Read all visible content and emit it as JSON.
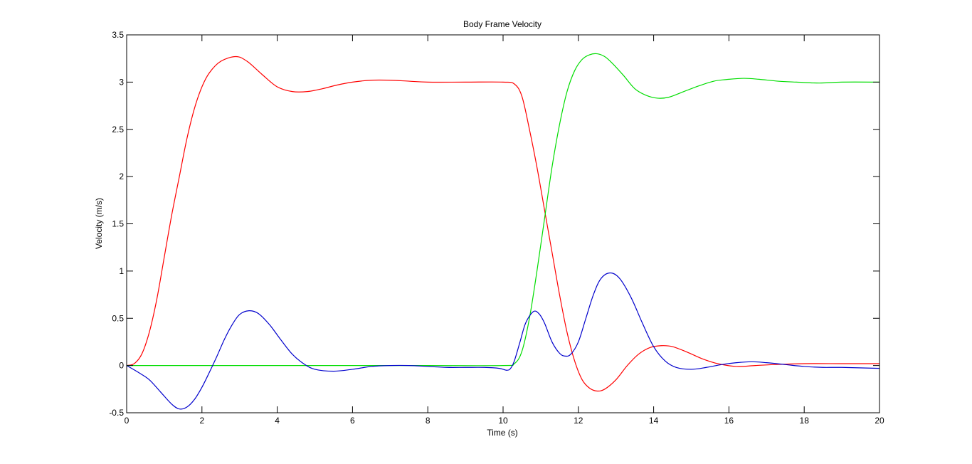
{
  "chart_data": {
    "type": "line",
    "title": "Body Frame Velocity",
    "xlabel": "Time (s)",
    "ylabel": "Velocity (m/s)",
    "xlim": [
      0,
      20
    ],
    "ylim": [
      -0.5,
      3.5
    ],
    "xticks": [
      0,
      2,
      4,
      6,
      8,
      10,
      12,
      14,
      16,
      18,
      20
    ],
    "yticks": [
      -0.5,
      0,
      0.5,
      1,
      1.5,
      2,
      2.5,
      3,
      3.5
    ],
    "xtick_labels": [
      "0",
      "2",
      "4",
      "6",
      "8",
      "10",
      "12",
      "14",
      "16",
      "18",
      "20"
    ],
    "ytick_labels": [
      "-0.5",
      "0",
      "0.5",
      "1",
      "1.5",
      "2",
      "2.5",
      "3",
      "3.5"
    ],
    "grid": false,
    "series": [
      {
        "color": "#ff0000",
        "points": [
          [
            0,
            0
          ],
          [
            0.2,
            0.02
          ],
          [
            0.4,
            0.12
          ],
          [
            0.6,
            0.35
          ],
          [
            0.8,
            0.7
          ],
          [
            1.0,
            1.15
          ],
          [
            1.2,
            1.6
          ],
          [
            1.4,
            2.0
          ],
          [
            1.6,
            2.4
          ],
          [
            1.8,
            2.72
          ],
          [
            2.0,
            2.95
          ],
          [
            2.2,
            3.1
          ],
          [
            2.5,
            3.22
          ],
          [
            2.9,
            3.27
          ],
          [
            3.2,
            3.22
          ],
          [
            3.6,
            3.08
          ],
          [
            4.0,
            2.95
          ],
          [
            4.4,
            2.9
          ],
          [
            4.8,
            2.9
          ],
          [
            5.2,
            2.93
          ],
          [
            5.6,
            2.97
          ],
          [
            6.0,
            3.0
          ],
          [
            6.5,
            3.02
          ],
          [
            7.0,
            3.02
          ],
          [
            7.5,
            3.01
          ],
          [
            8.0,
            3.0
          ],
          [
            9.0,
            3.0
          ],
          [
            10.0,
            3.0
          ],
          [
            10.3,
            2.98
          ],
          [
            10.5,
            2.85
          ],
          [
            10.7,
            2.5
          ],
          [
            10.9,
            2.1
          ],
          [
            11.1,
            1.65
          ],
          [
            11.3,
            1.2
          ],
          [
            11.5,
            0.75
          ],
          [
            11.7,
            0.35
          ],
          [
            11.9,
            0.05
          ],
          [
            12.1,
            -0.15
          ],
          [
            12.3,
            -0.24
          ],
          [
            12.5,
            -0.27
          ],
          [
            12.7,
            -0.25
          ],
          [
            13.0,
            -0.15
          ],
          [
            13.3,
            0.0
          ],
          [
            13.6,
            0.12
          ],
          [
            13.9,
            0.19
          ],
          [
            14.2,
            0.21
          ],
          [
            14.5,
            0.2
          ],
          [
            14.9,
            0.14
          ],
          [
            15.3,
            0.07
          ],
          [
            15.7,
            0.02
          ],
          [
            16.2,
            -0.01
          ],
          [
            16.7,
            0.0
          ],
          [
            17.2,
            0.01
          ],
          [
            18.0,
            0.02
          ],
          [
            19.0,
            0.02
          ],
          [
            20.0,
            0.02
          ]
        ]
      },
      {
        "color": "#00dd00",
        "points": [
          [
            0,
            0
          ],
          [
            2,
            0
          ],
          [
            4,
            0
          ],
          [
            6,
            0
          ],
          [
            8,
            0
          ],
          [
            10.0,
            0
          ],
          [
            10.3,
            0.02
          ],
          [
            10.5,
            0.15
          ],
          [
            10.7,
            0.5
          ],
          [
            10.9,
            1.0
          ],
          [
            11.1,
            1.55
          ],
          [
            11.3,
            2.1
          ],
          [
            11.5,
            2.55
          ],
          [
            11.7,
            2.9
          ],
          [
            11.9,
            3.12
          ],
          [
            12.1,
            3.24
          ],
          [
            12.3,
            3.29
          ],
          [
            12.5,
            3.3
          ],
          [
            12.7,
            3.27
          ],
          [
            12.9,
            3.2
          ],
          [
            13.2,
            3.07
          ],
          [
            13.5,
            2.93
          ],
          [
            13.8,
            2.86
          ],
          [
            14.1,
            2.83
          ],
          [
            14.4,
            2.84
          ],
          [
            14.8,
            2.9
          ],
          [
            15.2,
            2.96
          ],
          [
            15.6,
            3.01
          ],
          [
            16.0,
            3.03
          ],
          [
            16.4,
            3.04
          ],
          [
            16.8,
            3.03
          ],
          [
            17.3,
            3.01
          ],
          [
            17.8,
            3.0
          ],
          [
            18.4,
            2.99
          ],
          [
            19.0,
            3.0
          ],
          [
            20.0,
            3.0
          ]
        ]
      },
      {
        "color": "#0000cc",
        "points": [
          [
            0,
            0
          ],
          [
            0.3,
            -0.07
          ],
          [
            0.6,
            -0.15
          ],
          [
            0.9,
            -0.28
          ],
          [
            1.2,
            -0.41
          ],
          [
            1.4,
            -0.46
          ],
          [
            1.6,
            -0.44
          ],
          [
            1.8,
            -0.36
          ],
          [
            2.0,
            -0.23
          ],
          [
            2.2,
            -0.07
          ],
          [
            2.4,
            0.1
          ],
          [
            2.6,
            0.28
          ],
          [
            2.8,
            0.43
          ],
          [
            3.0,
            0.54
          ],
          [
            3.25,
            0.58
          ],
          [
            3.5,
            0.55
          ],
          [
            3.8,
            0.43
          ],
          [
            4.1,
            0.27
          ],
          [
            4.4,
            0.12
          ],
          [
            4.7,
            0.02
          ],
          [
            5.0,
            -0.04
          ],
          [
            5.5,
            -0.06
          ],
          [
            6.0,
            -0.04
          ],
          [
            6.5,
            -0.01
          ],
          [
            7.0,
            0.0
          ],
          [
            7.5,
            0.0
          ],
          [
            8.0,
            -0.01
          ],
          [
            8.5,
            -0.02
          ],
          [
            9.0,
            -0.02
          ],
          [
            9.5,
            -0.02
          ],
          [
            9.9,
            -0.03
          ],
          [
            10.1,
            -0.05
          ],
          [
            10.2,
            -0.03
          ],
          [
            10.3,
            0.05
          ],
          [
            10.45,
            0.25
          ],
          [
            10.6,
            0.45
          ],
          [
            10.8,
            0.57
          ],
          [
            10.95,
            0.55
          ],
          [
            11.1,
            0.45
          ],
          [
            11.3,
            0.25
          ],
          [
            11.5,
            0.13
          ],
          [
            11.65,
            0.1
          ],
          [
            11.8,
            0.12
          ],
          [
            12.0,
            0.25
          ],
          [
            12.2,
            0.5
          ],
          [
            12.4,
            0.75
          ],
          [
            12.6,
            0.92
          ],
          [
            12.85,
            0.98
          ],
          [
            13.1,
            0.92
          ],
          [
            13.4,
            0.72
          ],
          [
            13.7,
            0.45
          ],
          [
            14.0,
            0.2
          ],
          [
            14.3,
            0.05
          ],
          [
            14.6,
            -0.02
          ],
          [
            15.0,
            -0.04
          ],
          [
            15.4,
            -0.02
          ],
          [
            15.8,
            0.01
          ],
          [
            16.2,
            0.03
          ],
          [
            16.6,
            0.04
          ],
          [
            17.0,
            0.03
          ],
          [
            17.5,
            0.01
          ],
          [
            18.0,
            -0.01
          ],
          [
            18.5,
            -0.02
          ],
          [
            19.0,
            -0.02
          ],
          [
            20.0,
            -0.03
          ]
        ]
      }
    ]
  }
}
